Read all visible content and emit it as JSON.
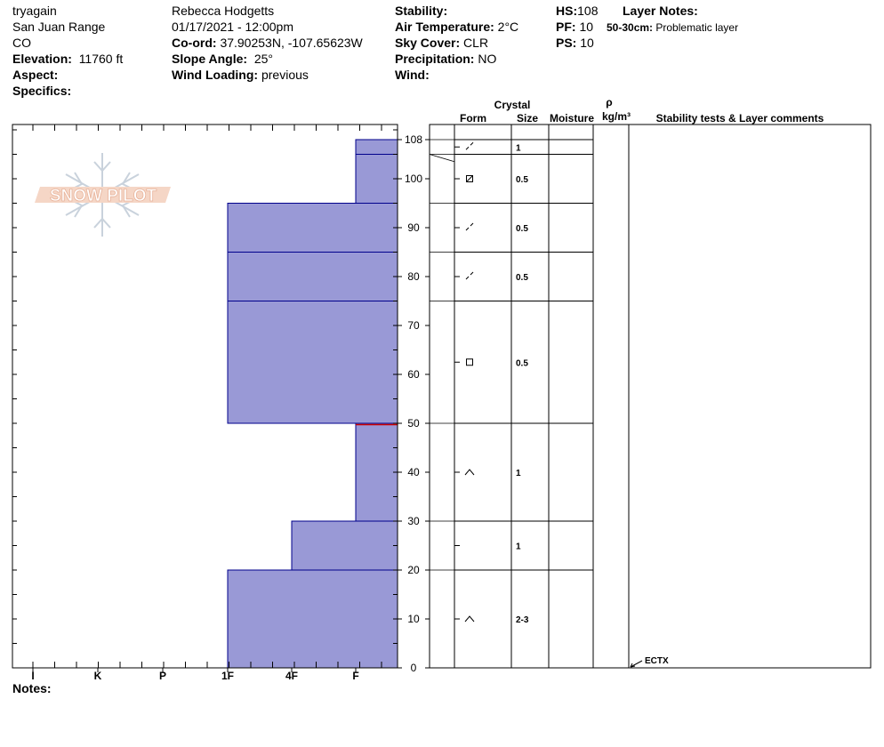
{
  "header": {
    "col1": {
      "name": "tryagain",
      "range": "San Juan Range",
      "state": "CO",
      "elevation_label": "Elevation:",
      "elevation_value": "11760 ft",
      "aspect_label": "Aspect:",
      "specifics_label": "Specifics:"
    },
    "col2": {
      "observer": "Rebecca Hodgetts",
      "datetime": "01/17/2021 - 12:00pm",
      "coord_label": "Co-ord:",
      "coord_value": "37.90253N, -107.65623W",
      "slope_label": "Slope Angle:",
      "slope_value": "25°",
      "wind_loading_label": "Wind Loading:",
      "wind_loading_value": "previous"
    },
    "col3": {
      "stability_label": "Stability:",
      "air_temp_label": "Air Temperature:",
      "air_temp_value": "2°C",
      "sky_label": "Sky Cover:",
      "sky_value": "CLR",
      "precip_label": "Precipitation:",
      "precip_value": "NO",
      "wind_label": "Wind:"
    },
    "col4": {
      "hs_label": "HS:",
      "hs_value": "108",
      "pf_label": "PF:",
      "pf_value": "10",
      "ps_label": "PS:",
      "ps_value": "10",
      "layer_notes_label": "Layer Notes:",
      "layer_note_range": "50-30cm:",
      "layer_note_text": "Problematic layer"
    }
  },
  "notes_label": "Notes:",
  "logo_text": "SNOW PILOT",
  "table_headers": {
    "crystal": "Crystal",
    "form": "Form",
    "size": "Size",
    "moisture": "Moisture",
    "rho": "ρ",
    "density_unit": "kg/m³",
    "comments": "Stability tests & Layer comments"
  },
  "colors": {
    "hardness_fill": "#9999d6",
    "layer_line": "#00008b",
    "problem_line": "#cc0000"
  },
  "chart_data": {
    "type": "bar",
    "title": "",
    "xlabel": "",
    "ylabel": "",
    "ylim": [
      0,
      110
    ],
    "y_ticks": [
      0,
      10,
      20,
      30,
      40,
      50,
      60,
      70,
      80,
      90,
      100,
      108
    ],
    "hardness_scale": [
      "I",
      "K",
      "P",
      "1F",
      "4F",
      "F"
    ],
    "layers": [
      {
        "top": 108,
        "bottom": 105,
        "hardness": 1
      },
      {
        "top": 105,
        "bottom": 95,
        "hardness": 1
      },
      {
        "top": 95,
        "bottom": 85,
        "hardness": 3
      },
      {
        "top": 85,
        "bottom": 75,
        "hardness": 3
      },
      {
        "top": 75,
        "bottom": 50,
        "hardness": 3
      },
      {
        "top": 50,
        "bottom": 30,
        "hardness": 1
      },
      {
        "top": 30,
        "bottom": 20,
        "hardness": 2
      },
      {
        "top": 20,
        "bottom": 0,
        "hardness": 3
      }
    ],
    "problem_depth": 50,
    "crystal_rows": [
      {
        "top": 108,
        "bottom": 105,
        "form": "dash",
        "size": "1"
      },
      {
        "top": 105,
        "bottom": 95,
        "form": "box-x",
        "size": "0.5"
      },
      {
        "top": 95,
        "bottom": 85,
        "form": "dash",
        "size": "0.5"
      },
      {
        "top": 85,
        "bottom": 75,
        "form": "dash",
        "size": "0.5"
      },
      {
        "top": 75,
        "bottom": 50,
        "form": "box",
        "size": "0.5"
      },
      {
        "top": 50,
        "bottom": 30,
        "form": "caret",
        "size": "1"
      },
      {
        "top": 30,
        "bottom": 20,
        "form": "",
        "size": "1"
      },
      {
        "top": 20,
        "bottom": 0,
        "form": "caret",
        "size": "2-3"
      }
    ],
    "stability_tests": [
      {
        "depth": 0,
        "label": "ECTX"
      }
    ]
  }
}
